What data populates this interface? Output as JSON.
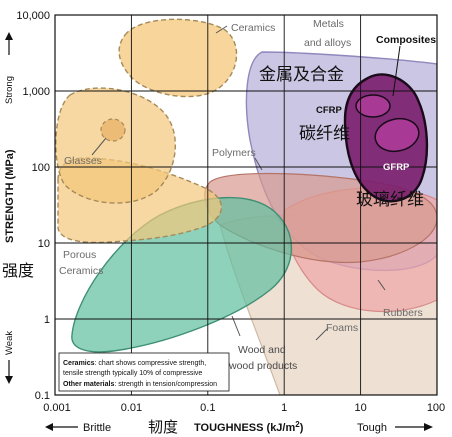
{
  "chart_data": {
    "type": "scatter",
    "x_scale": "log",
    "y_scale": "log",
    "xlim": [
      0.001,
      100
    ],
    "ylim": [
      0.1,
      10000
    ],
    "grid": true,
    "x_ticks": [
      "0.001",
      "0.01",
      "0.1",
      "1",
      "10",
      "100"
    ],
    "y_ticks": [
      "10,000",
      "1,000",
      "100",
      "10",
      "1",
      "0.1"
    ],
    "ylabel": "STRENGTH (MPa)",
    "ylabel_zh": "强度",
    "y_strong": "Strong",
    "y_weak": "Weak",
    "xlabel": "TOUGHNESS (kJ/m",
    "xlabel_sup": "2",
    "xlabel_close": ")",
    "xlabel_zh": "韧度",
    "x_brittle": "Brittle",
    "x_tough": "Tough",
    "regions": [
      {
        "name": "Ceramics",
        "color": "#f4c77a"
      },
      {
        "name": "Metals and alloys",
        "color": "#b8b3d9"
      },
      {
        "name": "Composites",
        "color": "#7b1f6e"
      },
      {
        "name": "Glasses",
        "color": "#f4c77a"
      },
      {
        "name": "Porous Ceramics",
        "color": "#f4c77a"
      },
      {
        "name": "Polymers",
        "color": "#d99a8f"
      },
      {
        "name": "Rubbers",
        "color": "#efa5a5"
      },
      {
        "name": "Foams",
        "color": "#e8d5c4"
      },
      {
        "name": "Wood and wood products",
        "color": "#5fbfa0"
      },
      {
        "name": "CFRP",
        "color": "#a83a95"
      },
      {
        "name": "GFRP",
        "color": "#a83a95"
      }
    ],
    "labels": {
      "ceramics": "Ceramics",
      "metals_1": "Metals",
      "metals_2": "and alloys",
      "composites": "Composites",
      "metals_zh": "金属及合金",
      "cfrp": "CFRP",
      "carbon_zh": "碳纤维",
      "gfrp": "GFRP",
      "glass_zh": "玻璃纤维",
      "glasses": "Glasses",
      "polymers": "Polymers",
      "porous_1": "Porous",
      "porous_2": "Ceramics",
      "rubbers": "Rubbers",
      "foams": "Foams",
      "wood_1": "Wood and",
      "wood_2": "wood products"
    },
    "note": {
      "ceramics_bold": "Ceramics",
      "ceramics_text_1": ": chart shows compressive strength,",
      "ceramics_text_2": "tensile strength typically 10% of compressive",
      "other_bold": "Other materials",
      "other_text": ": strength in tension/compression"
    }
  }
}
